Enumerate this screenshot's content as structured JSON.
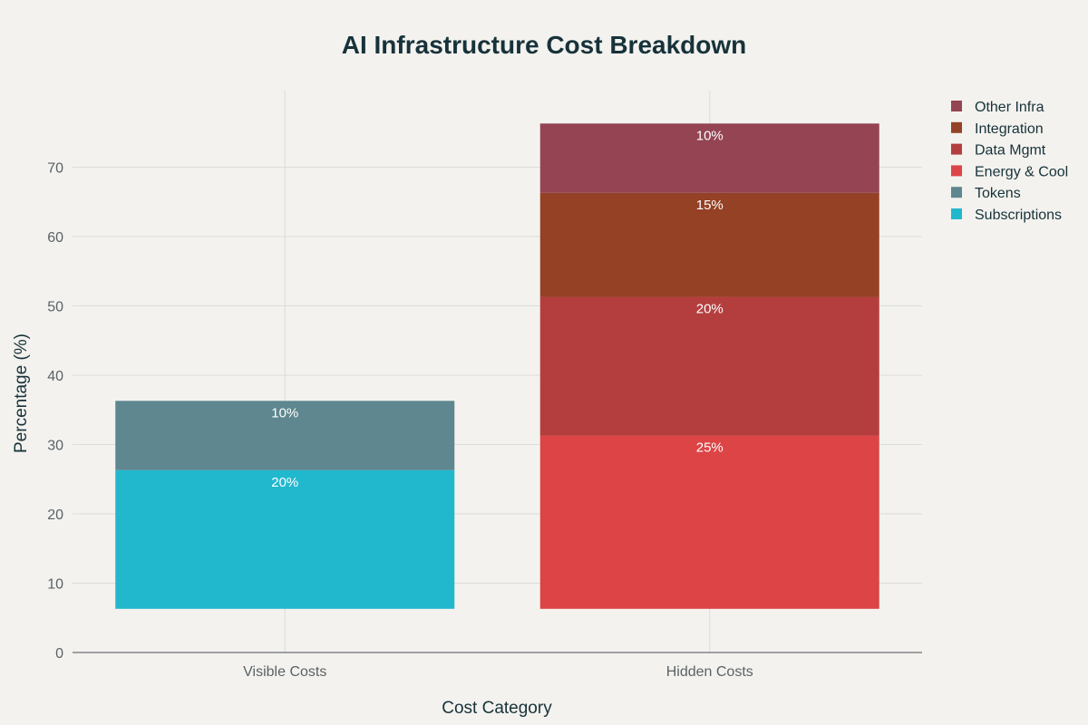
{
  "chart_data": {
    "type": "bar",
    "stacked": true,
    "title": "AI Infrastructure Cost Breakdown",
    "xlabel": "Cost Category",
    "ylabel": "Percentage (%)",
    "categories": [
      "Visible Costs",
      "Hidden Costs"
    ],
    "ylim": [
      0,
      80
    ],
    "yticks": [
      0,
      10,
      20,
      30,
      40,
      50,
      60,
      70
    ],
    "base": 6.3,
    "grid": true,
    "legend_position": "top-right",
    "series": [
      {
        "name": "Subscriptions",
        "color": "#21b8ce",
        "values": [
          20,
          0
        ],
        "labels": [
          "20%",
          ""
        ]
      },
      {
        "name": "Tokens",
        "color": "#5e878f",
        "values": [
          10,
          0
        ],
        "labels": [
          "10%",
          ""
        ]
      },
      {
        "name": "Energy & Cool",
        "color": "#dc4446",
        "values": [
          0,
          25
        ],
        "labels": [
          "",
          "25%"
        ]
      },
      {
        "name": "Data Mgmt",
        "color": "#b43e3e",
        "values": [
          0,
          20
        ],
        "labels": [
          "",
          "20%"
        ]
      },
      {
        "name": "Integration",
        "color": "#944125",
        "values": [
          0,
          15
        ],
        "labels": [
          "",
          "15%"
        ]
      },
      {
        "name": "Other Infra",
        "color": "#944453",
        "values": [
          0,
          10
        ],
        "labels": [
          "",
          "10%"
        ]
      }
    ]
  }
}
